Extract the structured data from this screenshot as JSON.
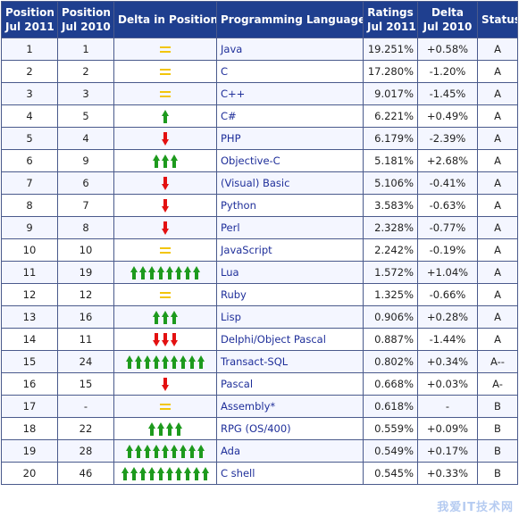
{
  "headers": {
    "pos_2011": [
      "Position",
      "Jul 2011"
    ],
    "pos_2010": [
      "Position",
      "Jul 2010"
    ],
    "delta_pos": "Delta in Position",
    "language": "Programming Language",
    "ratings": [
      "Ratings",
      "Jul 2011"
    ],
    "delta": [
      "Delta",
      "Jul 2010"
    ],
    "status": "Status"
  },
  "rows": [
    {
      "pos_2011": "1",
      "pos_2010": "1",
      "shift": {
        "type": "same",
        "count": 1
      },
      "language": "Java",
      "ratings": "19.251%",
      "delta": "+0.58%",
      "status": "A"
    },
    {
      "pos_2011": "2",
      "pos_2010": "2",
      "shift": {
        "type": "same",
        "count": 1
      },
      "language": "C",
      "ratings": "17.280%",
      "delta": "-1.20%",
      "status": "A"
    },
    {
      "pos_2011": "3",
      "pos_2010": "3",
      "shift": {
        "type": "same",
        "count": 1
      },
      "language": "C++",
      "ratings": "9.017%",
      "delta": "-1.45%",
      "status": "A"
    },
    {
      "pos_2011": "4",
      "pos_2010": "5",
      "shift": {
        "type": "up",
        "count": 1
      },
      "language": "C#",
      "ratings": "6.221%",
      "delta": "+0.49%",
      "status": "A"
    },
    {
      "pos_2011": "5",
      "pos_2010": "4",
      "shift": {
        "type": "down",
        "count": 1
      },
      "language": "PHP",
      "ratings": "6.179%",
      "delta": "-2.39%",
      "status": "A"
    },
    {
      "pos_2011": "6",
      "pos_2010": "9",
      "shift": {
        "type": "up",
        "count": 3
      },
      "language": "Objective-C",
      "ratings": "5.181%",
      "delta": "+2.68%",
      "status": "A"
    },
    {
      "pos_2011": "7",
      "pos_2010": "6",
      "shift": {
        "type": "down",
        "count": 1
      },
      "language": "(Visual) Basic",
      "ratings": "5.106%",
      "delta": "-0.41%",
      "status": "A"
    },
    {
      "pos_2011": "8",
      "pos_2010": "7",
      "shift": {
        "type": "down",
        "count": 1
      },
      "language": "Python",
      "ratings": "3.583%",
      "delta": "-0.63%",
      "status": "A"
    },
    {
      "pos_2011": "9",
      "pos_2010": "8",
      "shift": {
        "type": "down",
        "count": 1
      },
      "language": "Perl",
      "ratings": "2.328%",
      "delta": "-0.77%",
      "status": "A"
    },
    {
      "pos_2011": "10",
      "pos_2010": "10",
      "shift": {
        "type": "same",
        "count": 1
      },
      "language": "JavaScript",
      "ratings": "2.242%",
      "delta": "-0.19%",
      "status": "A"
    },
    {
      "pos_2011": "11",
      "pos_2010": "19",
      "shift": {
        "type": "up",
        "count": 8
      },
      "language": "Lua",
      "ratings": "1.572%",
      "delta": "+1.04%",
      "status": "A"
    },
    {
      "pos_2011": "12",
      "pos_2010": "12",
      "shift": {
        "type": "same",
        "count": 1
      },
      "language": "Ruby",
      "ratings": "1.325%",
      "delta": "-0.66%",
      "status": "A"
    },
    {
      "pos_2011": "13",
      "pos_2010": "16",
      "shift": {
        "type": "up",
        "count": 3
      },
      "language": "Lisp",
      "ratings": "0.906%",
      "delta": "+0.28%",
      "status": "A"
    },
    {
      "pos_2011": "14",
      "pos_2010": "11",
      "shift": {
        "type": "down",
        "count": 3
      },
      "language": "Delphi/Object Pascal",
      "ratings": "0.887%",
      "delta": "-1.44%",
      "status": "A"
    },
    {
      "pos_2011": "15",
      "pos_2010": "24",
      "shift": {
        "type": "up",
        "count": 9
      },
      "language": "Transact-SQL",
      "ratings": "0.802%",
      "delta": "+0.34%",
      "status": "A--"
    },
    {
      "pos_2011": "16",
      "pos_2010": "15",
      "shift": {
        "type": "down",
        "count": 1
      },
      "language": "Pascal",
      "ratings": "0.668%",
      "delta": "+0.03%",
      "status": "A-"
    },
    {
      "pos_2011": "17",
      "pos_2010": "-",
      "shift": {
        "type": "same",
        "count": 1
      },
      "language": "Assembly*",
      "ratings": "0.618%",
      "delta": "-",
      "status": "B"
    },
    {
      "pos_2011": "18",
      "pos_2010": "22",
      "shift": {
        "type": "up",
        "count": 4
      },
      "language": "RPG (OS/400)",
      "ratings": "0.559%",
      "delta": "+0.09%",
      "status": "B"
    },
    {
      "pos_2011": "19",
      "pos_2010": "28",
      "shift": {
        "type": "up",
        "count": 9
      },
      "language": "Ada",
      "ratings": "0.549%",
      "delta": "+0.17%",
      "status": "B"
    },
    {
      "pos_2011": "20",
      "pos_2010": "46",
      "shift": {
        "type": "up",
        "count": 10
      },
      "language": "C shell",
      "ratings": "0.545%",
      "delta": "+0.33%",
      "status": "B"
    }
  ],
  "colors": {
    "header_bg": "#1f3f8f",
    "language_text": "#1f2f9a",
    "arrow_up": "#1d9a1d",
    "arrow_down": "#e31010",
    "equal": "#f2c50a"
  },
  "watermark": "我爱IT技术网"
}
